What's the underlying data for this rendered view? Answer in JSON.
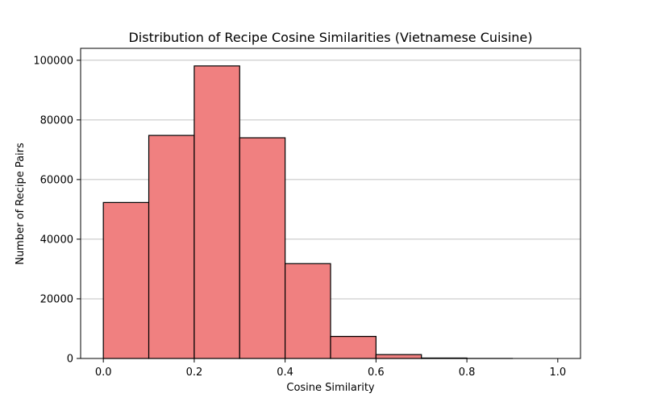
{
  "chart_data": {
    "type": "bar",
    "title": "Distribution of Recipe Cosine Similarities (Vietnamese Cuisine)",
    "xlabel": "Cosine Similarity",
    "ylabel": "Number of Recipe Pairs",
    "bin_edges": [
      0.0,
      0.1,
      0.2,
      0.3,
      0.4,
      0.5,
      0.6,
      0.7,
      0.8,
      0.9,
      1.0
    ],
    "values": [
      52300,
      74800,
      98100,
      74000,
      31800,
      7400,
      1300,
      150,
      10,
      0
    ],
    "xlim": [
      -0.05,
      1.05
    ],
    "ylim": [
      0,
      104000
    ],
    "xticks": [
      0.0,
      0.2,
      0.4,
      0.6,
      0.8,
      1.0
    ],
    "xtick_labels": [
      "0.0",
      "0.2",
      "0.4",
      "0.6",
      "0.8",
      "1.0"
    ],
    "yticks": [
      0,
      20000,
      40000,
      60000,
      80000,
      100000
    ],
    "ytick_labels": [
      "0",
      "20000",
      "40000",
      "60000",
      "80000",
      "100000"
    ],
    "grid": "y-axis",
    "bar_color": "#f08080",
    "edge_color": "#000000",
    "grid_color": "#c0c0c0"
  }
}
